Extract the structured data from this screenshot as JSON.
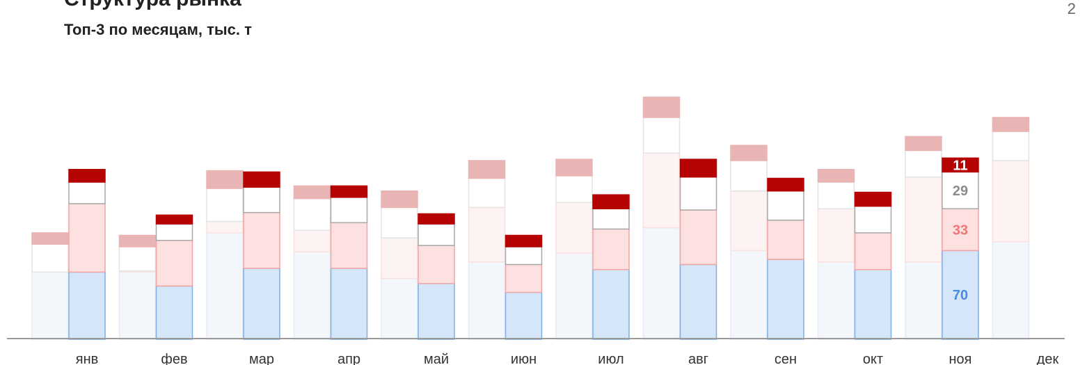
{
  "page": {
    "title_fragment": "Структура рынка",
    "subtitle": "Топ-3 по месяцам, тыс. т",
    "page_number": "2"
  },
  "chart_data": {
    "type": "bar",
    "stacked": true,
    "categories": [
      "янв",
      "фев",
      "мар",
      "апр",
      "май",
      "июн",
      "июл",
      "авг",
      "сен",
      "окт",
      "ноя",
      "дек"
    ],
    "ylim": [
      0,
      260
    ],
    "grid": false,
    "legend": "none",
    "series_groups": [
      {
        "name": "",
        "style": "faded",
        "stacks": {
          "segment_1": [
            53,
            53,
            84,
            69,
            48,
            61,
            68,
            88,
            70,
            61,
            61,
            77
          ],
          "segment_2": [
            0,
            1,
            9,
            17,
            32,
            43,
            40,
            59,
            47,
            42,
            67,
            64
          ],
          "segment_3": [
            22,
            19,
            26,
            25,
            24,
            23,
            21,
            28,
            24,
            21,
            21,
            23
          ],
          "segment_4": [
            9,
            9,
            14,
            10,
            13,
            14,
            13,
            16,
            12,
            10,
            11,
            11
          ]
        }
      },
      {
        "name": "",
        "style": "solid",
        "stacks": {
          "segment_1": [
            53,
            42,
            56,
            56,
            44,
            37,
            55,
            59,
            63,
            55,
            70
          ],
          "segment_2": [
            54,
            36,
            44,
            36,
            30,
            22,
            32,
            43,
            31,
            29,
            33
          ],
          "segment_3": [
            17,
            13,
            20,
            20,
            17,
            14,
            16,
            26,
            23,
            21,
            29
          ],
          "segment_4": [
            10,
            7,
            12,
            9,
            8,
            9,
            11,
            14,
            10,
            11,
            11
          ]
        }
      }
    ],
    "labels": {
      "category": "ноя",
      "segment_1": "70",
      "segment_2": "33",
      "segment_3": "29",
      "segment_4": "11"
    },
    "colors": {
      "solid": {
        "segment_1": {
          "fill": "#d5e6f8",
          "stroke": "#7eaee6"
        },
        "segment_2": {
          "fill": "#fde0e0",
          "stroke": "#f3a3a3"
        },
        "segment_3": {
          "fill": "#ffffff",
          "stroke": "#a8a8a8"
        },
        "segment_4": {
          "fill": "#b50202",
          "stroke": "#b50202"
        }
      },
      "faded": {
        "segment_1": {
          "fill": "#f3f7fc",
          "stroke": "#e3ecf6"
        },
        "segment_2": {
          "fill": "#fef3f3",
          "stroke": "#fbe0e0"
        },
        "segment_3": {
          "fill": "#ffffff",
          "stroke": "#e4e4e4"
        },
        "segment_4": {
          "fill": "#e8b4b4",
          "stroke": "#e8b4b4"
        }
      },
      "label_text": {
        "segment_1": "#4a8ae0",
        "segment_2": "#f07777",
        "segment_3": "#8c8c8c",
        "segment_4": "#ffffff"
      },
      "axis": "#9a9a9a"
    }
  }
}
